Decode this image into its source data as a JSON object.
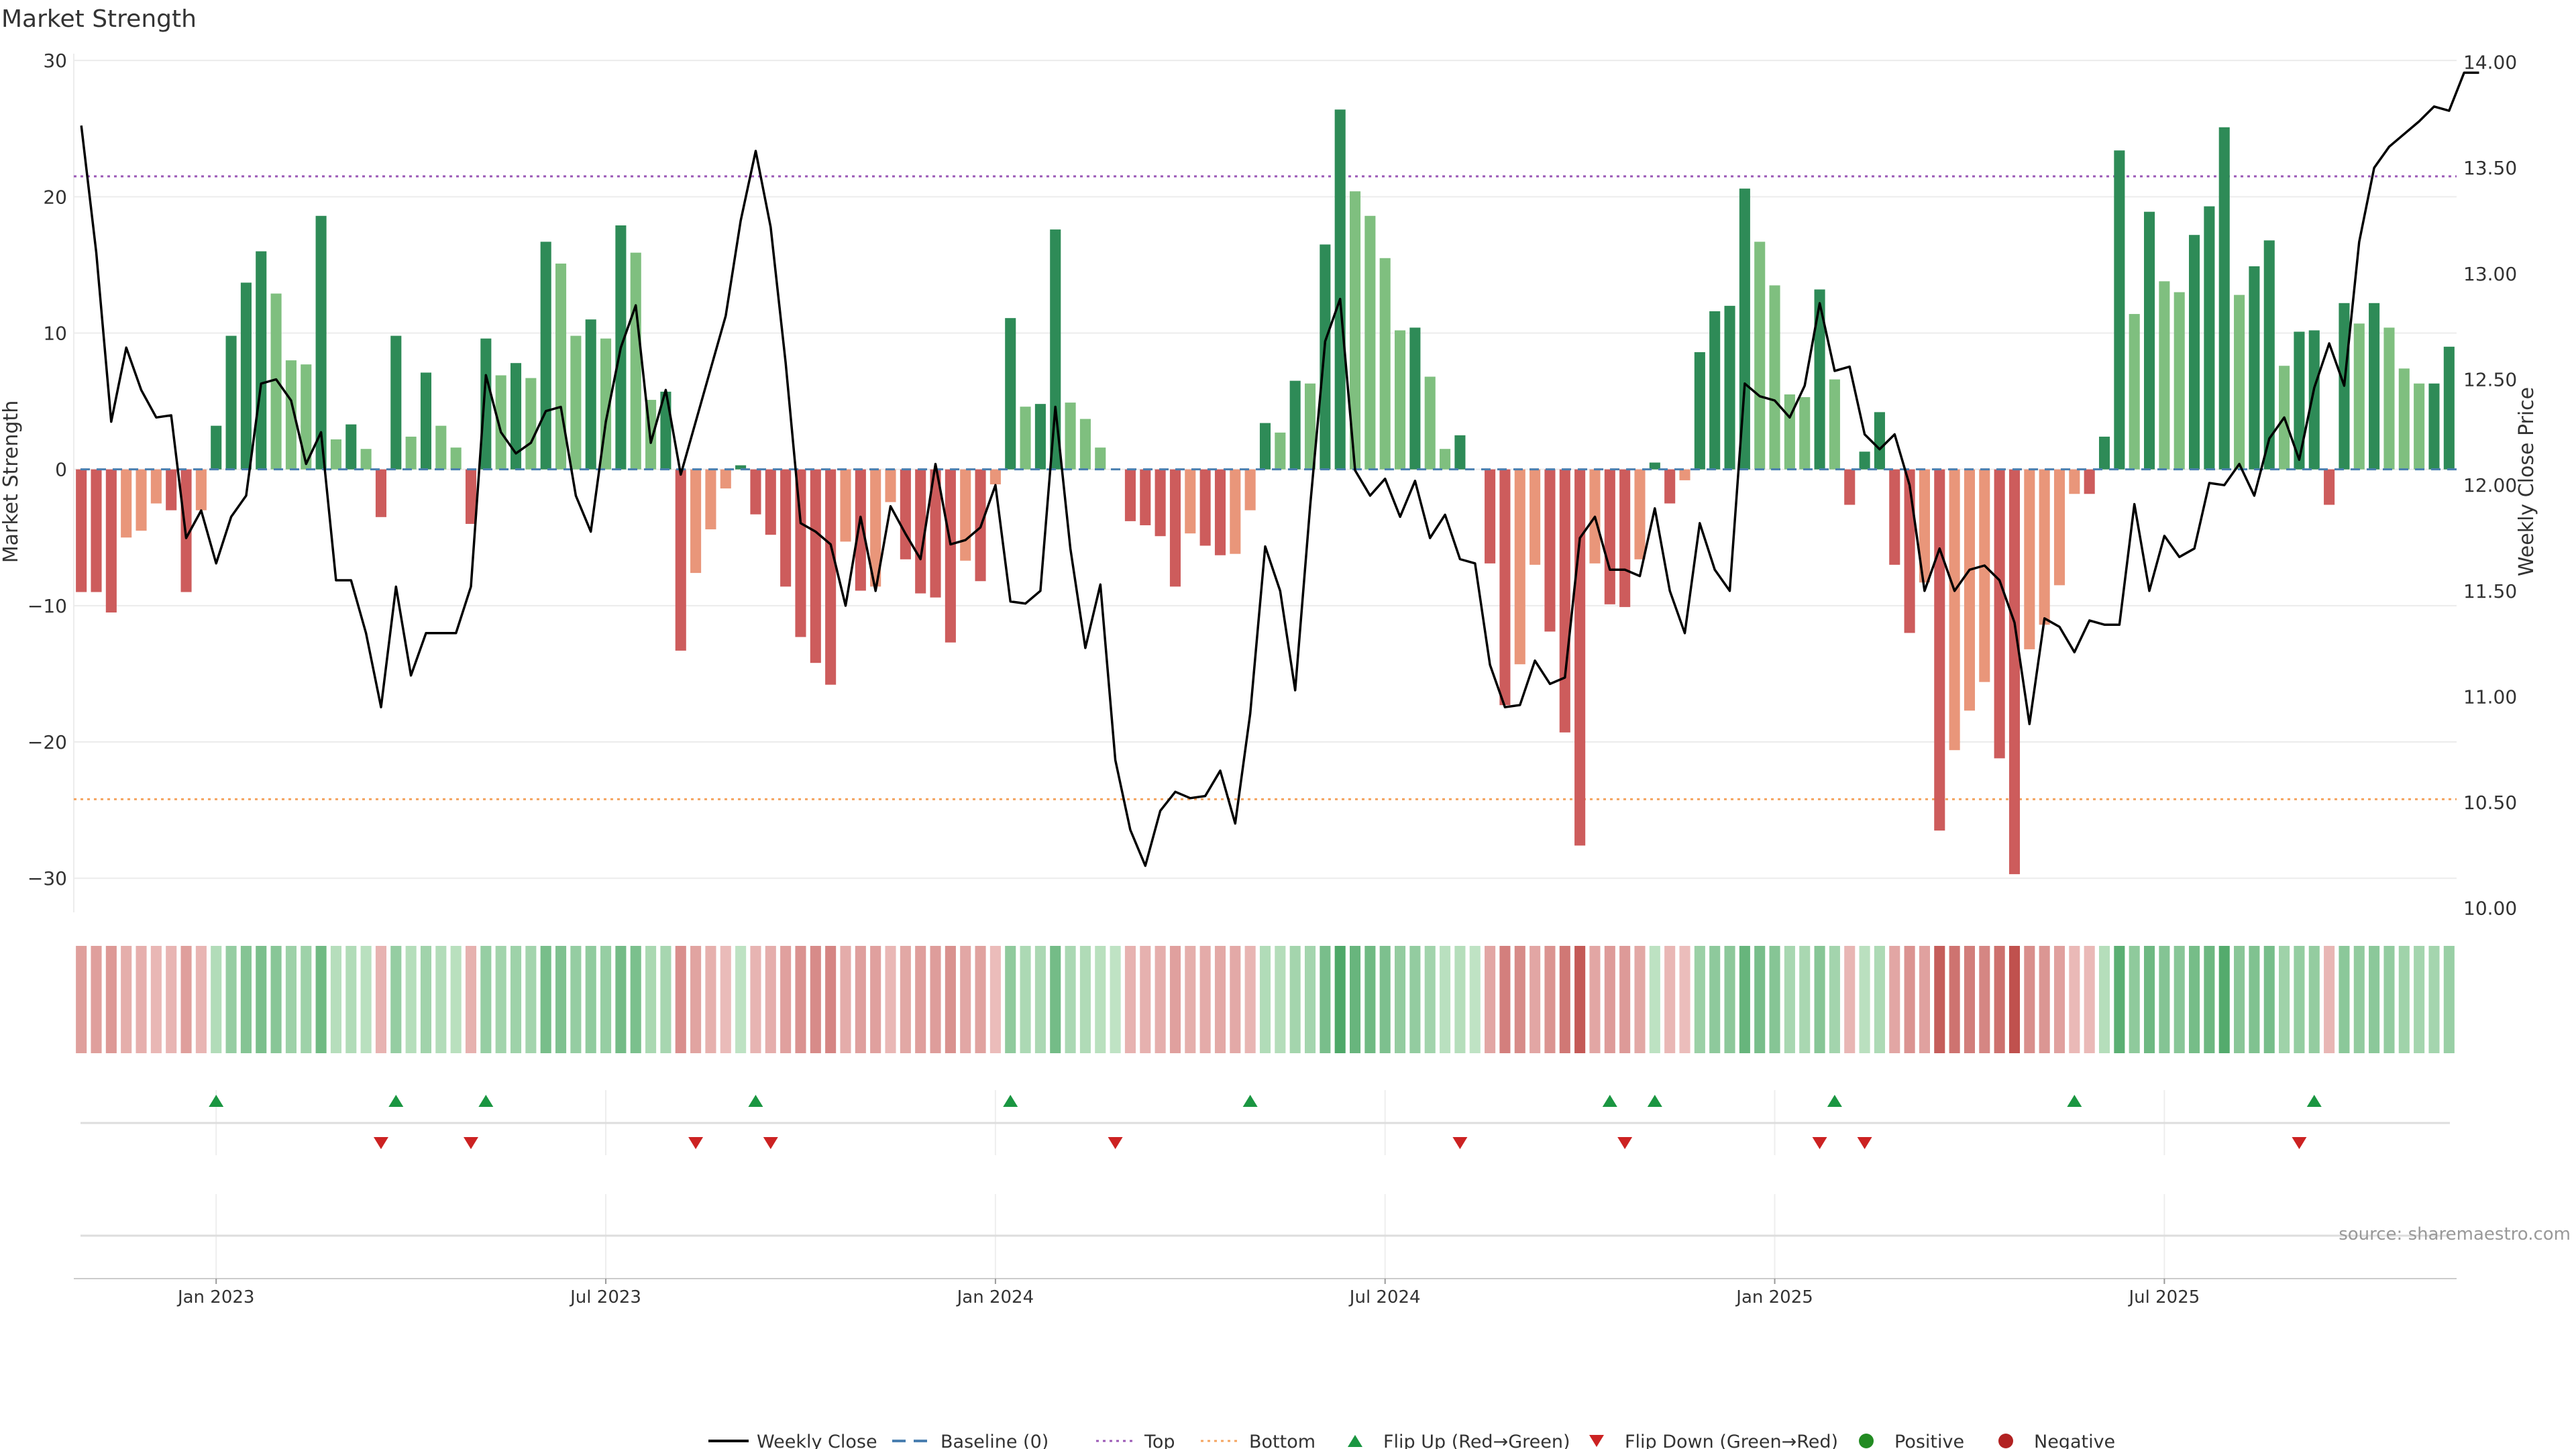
{
  "chart_data": {
    "type": "bar+line",
    "title": "Market Strength",
    "ylabel_left": "Market Strength",
    "ylabel_right": "Weekly Close Price",
    "y_left_ticks": [
      30,
      20,
      10,
      0,
      -10,
      -20,
      -30
    ],
    "y_left_tick_labels": [
      "30",
      "20",
      "10",
      "0",
      "−10",
      "−20",
      "−30"
    ],
    "y_left_range": [
      -32.5,
      30.5
    ],
    "y_right_ticks": [
      14.0,
      13.5,
      13.0,
      12.5,
      12.0,
      11.5,
      11.0,
      10.5,
      10.0
    ],
    "y_right_tick_labels": [
      "14.00",
      "13.50",
      "13.00",
      "12.50",
      "12.00",
      "11.50",
      "11.00",
      "10.50",
      "10.00"
    ],
    "y_right_range": [
      9.98,
      14.04
    ],
    "x_tick_labels": [
      "Jan 2023",
      "Jul 2023",
      "Jan 2024",
      "Jul 2024",
      "Jan 2025",
      "Jul 2025"
    ],
    "x_tick_weeks": [
      9.5,
      35.5,
      61.5,
      87.5,
      113.5,
      139.5
    ],
    "top_line": 21.5,
    "bottom_line": -24.2,
    "strength": [
      -9,
      -9,
      -10.5,
      -5,
      -4.5,
      -2.5,
      -3,
      -9,
      -3,
      3.2,
      9.8,
      13.7,
      16,
      12.9,
      8,
      7.7,
      18.6,
      2.2,
      3.3,
      1.5,
      -3.5,
      9.8,
      2.4,
      7.1,
      3.2,
      1.6,
      -4,
      9.6,
      6.9,
      7.8,
      6.7,
      16.7,
      15.1,
      9.8,
      11,
      9.6,
      17.9,
      15.9,
      5.1,
      5.7,
      -13.3,
      -7.6,
      -4.4,
      -1.4,
      0.3,
      -3.3,
      -4.8,
      -8.6,
      -12.3,
      -14.2,
      -15.8,
      -5.3,
      -8.9,
      -8.6,
      -2.4,
      -6.6,
      -9.1,
      -9.4,
      -12.7,
      -6.7,
      -8.2,
      -1.1,
      11.1,
      4.6,
      4.8,
      17.6,
      4.9,
      3.7,
      1.6,
      0,
      -3.8,
      -4.1,
      -4.9,
      -8.6,
      -4.7,
      -5.6,
      -6.3,
      -6.2,
      -3,
      3.4,
      2.7,
      6.5,
      6.3,
      16.5,
      26.4,
      20.4,
      18.6,
      15.5,
      10.2,
      10.4,
      6.8,
      1.5,
      2.5,
      0,
      -6.9,
      -17.3,
      -14.3,
      -7,
      -11.9,
      -19.3,
      -27.6,
      -6.9,
      -9.9,
      -10.1,
      -6.6,
      0.5,
      -2.5,
      -0.8,
      8.6,
      11.6,
      12,
      20.6,
      16.7,
      13.5,
      5.5,
      5.3,
      13.2,
      6.6,
      -2.6,
      1.3,
      4.2,
      -7,
      -12,
      -8.3,
      -26.5,
      -20.6,
      -17.7,
      -15.6,
      -21.2,
      -29.7,
      -13.2,
      -11.4,
      -8.5,
      -1.8,
      -1.8,
      2.4,
      23.4,
      11.4,
      18.9,
      13.8,
      13,
      17.2,
      19.3,
      25.1,
      12.8,
      14.9,
      16.8,
      7.6,
      10.1,
      10.2,
      -2.6,
      12.2,
      10.7,
      12.2,
      10.4,
      7.4,
      6.3,
      6.3,
      9
    ],
    "weekly_close": [
      13.7,
      13.1,
      12.3,
      12.65,
      12.45,
      12.32,
      12.33,
      11.75,
      11.88,
      11.63,
      11.85,
      11.95,
      12.48,
      12.5,
      12.4,
      12.1,
      12.25,
      11.55,
      11.55,
      11.3,
      10.95,
      11.52,
      11.1,
      11.3,
      11.3,
      11.3,
      11.52,
      12.52,
      12.25,
      12.15,
      12.2,
      12.35,
      12.37,
      11.95,
      11.78,
      12.3,
      12.65,
      12.85,
      12.2,
      12.45,
      12.05,
      12.3,
      12.55,
      12.8,
      13.25,
      13.58,
      13.22,
      12.58,
      11.82,
      11.78,
      11.72,
      11.43,
      11.85,
      11.5,
      11.9,
      11.77,
      11.65,
      12.1,
      11.72,
      11.74,
      11.8,
      12.0,
      11.45,
      11.44,
      11.5,
      12.37,
      11.7,
      11.23,
      11.53,
      10.7,
      10.37,
      10.2,
      10.46,
      10.55,
      10.52,
      10.53,
      10.65,
      10.4,
      10.92,
      11.71,
      11.5,
      11.03,
      11.9,
      12.68,
      12.88,
      12.07,
      11.95,
      12.03,
      11.85,
      12.02,
      11.75,
      11.86,
      11.65,
      11.63,
      11.15,
      10.95,
      10.96,
      11.17,
      11.06,
      11.09,
      11.75,
      11.85,
      11.6,
      11.6,
      11.57,
      11.89,
      11.5,
      11.3,
      11.82,
      11.6,
      11.5,
      12.48,
      12.42,
      12.4,
      12.32,
      12.47,
      12.86,
      12.54,
      12.56,
      12.24,
      12.17,
      12.24,
      12.0,
      11.5,
      11.7,
      11.5,
      11.6,
      11.62,
      11.55,
      11.35,
      10.87,
      11.37,
      11.33,
      11.21,
      11.36,
      11.34,
      11.34,
      11.91,
      11.5,
      11.76,
      11.66,
      11.7,
      12.01,
      12.0,
      12.1,
      11.95,
      12.22,
      12.32,
      12.12,
      12.46,
      12.67,
      12.47,
      13.15,
      13.5,
      13.6,
      13.66,
      13.72,
      13.79,
      13.77,
      13.95,
      13.95
    ],
    "flip_up_weeks": [
      9,
      21,
      27,
      45,
      62,
      78,
      102,
      105,
      117,
      133,
      149
    ],
    "flip_down_weeks": [
      20,
      26,
      41,
      46,
      69,
      92,
      103,
      116,
      119,
      148
    ],
    "legend": [
      "Weekly Close",
      "Baseline (0)",
      "Top",
      "Bottom",
      "Flip Up (Red→Green)",
      "Flip Down (Green→Red)",
      "Positive",
      "Negative"
    ],
    "source": "source: sharemaestro.com"
  },
  "colors": {
    "pos_strong": "#2e8b57",
    "pos_light": "#7fbf7f",
    "neg_strong": "#cd5c5c",
    "neg_light": "#e9967a",
    "flip_up": "#1a9641",
    "flip_down": "#cc2222",
    "top_line": "#9b59b6",
    "bottom_line": "#f4a460",
    "baseline": "#4a7fb0",
    "positive_dot": "#228b22",
    "negative_dot": "#b22222"
  }
}
